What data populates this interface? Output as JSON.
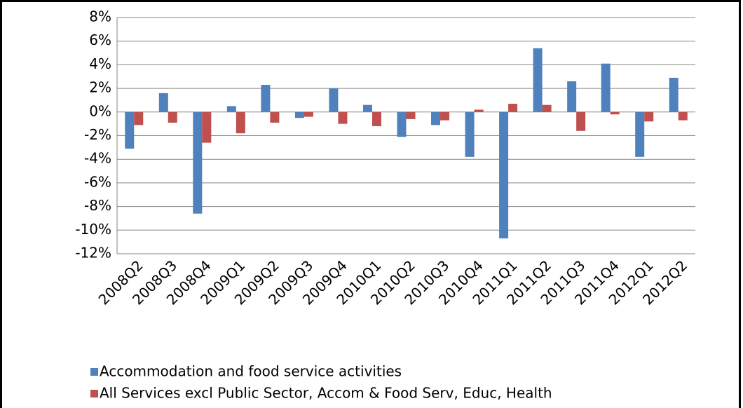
{
  "chart_data": {
    "type": "bar",
    "categories": [
      "2008Q2",
      "2008Q3",
      "2008Q4",
      "2009Q1",
      "2009Q2",
      "2009Q3",
      "2009Q4",
      "2010Q1",
      "2010Q2",
      "2010Q3",
      "2010Q4",
      "2011Q1",
      "2011Q2",
      "2011Q3",
      "2011Q4",
      "2012Q1",
      "2012Q2"
    ],
    "series": [
      {
        "name": "Accommodation and food service activities",
        "color": "#4f81bd",
        "values": [
          -3.1,
          1.6,
          -8.6,
          0.5,
          2.3,
          -0.5,
          2.0,
          0.6,
          -2.1,
          -1.1,
          -3.8,
          -10.7,
          5.4,
          2.6,
          4.1,
          -3.8,
          2.9
        ]
      },
      {
        "name": "All Services excl Public Sector, Accom & Food Serv, Educ, Health",
        "color": "#c0504d",
        "values": [
          -1.1,
          -0.9,
          -2.6,
          -1.8,
          -0.9,
          -0.4,
          -1.0,
          -1.2,
          -0.6,
          -0.7,
          0.2,
          0.7,
          0.6,
          -1.6,
          -0.2,
          -0.8,
          -0.7
        ]
      }
    ],
    "ylim": [
      -12,
      8
    ],
    "yticks": [
      {
        "value": -12,
        "label": "-12%"
      },
      {
        "value": -10,
        "label": "-10%"
      },
      {
        "value": -8,
        "label": "-8%"
      },
      {
        "value": -6,
        "label": "-6%"
      },
      {
        "value": -4,
        "label": "-4%"
      },
      {
        "value": -2,
        "label": "-2%"
      },
      {
        "value": 0,
        "label": "0%"
      },
      {
        "value": 2,
        "label": "2%"
      },
      {
        "value": 4,
        "label": "4%"
      },
      {
        "value": 6,
        "label": "6%"
      },
      {
        "value": 8,
        "label": "8%"
      }
    ],
    "grid": true,
    "legend": "bottom"
  }
}
